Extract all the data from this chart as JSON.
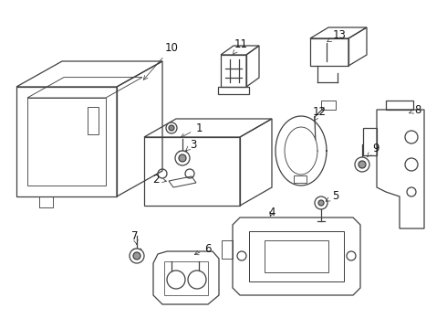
{
  "bg_color": "#ffffff",
  "line_color": "#404040",
  "label_color": "#111111",
  "fig_width": 4.9,
  "fig_height": 3.6,
  "dpi": 100,
  "label_fontsize": 8.5,
  "lw": 0.9
}
